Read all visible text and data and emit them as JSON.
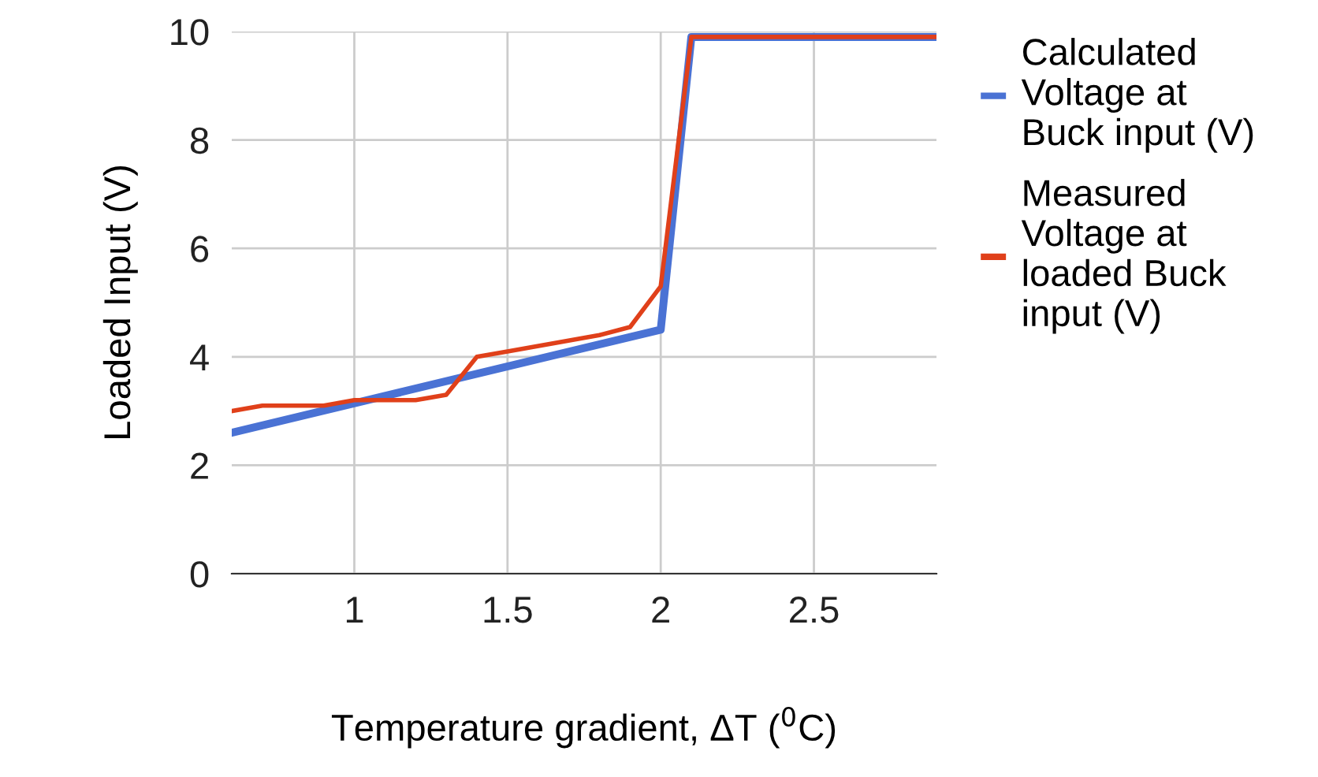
{
  "chart_data": {
    "type": "line",
    "xlabel": "Temperature gradient, ΔT ($^{0}$C)",
    "ylabel": "Loaded Input (V)",
    "series": [
      {
        "name": "Calculated Voltage at Buck input (V)",
        "color": "#4a72d4",
        "x": [
          0.6,
          2.0,
          2.1,
          2.9
        ],
        "values": [
          2.6,
          4.5,
          9.9,
          9.9
        ]
      },
      {
        "name": "Measured Voltage at loaded Buck input (V)",
        "color": "#e0401a",
        "x": [
          0.6,
          0.7,
          0.9,
          1.0,
          1.2,
          1.3,
          1.4,
          1.5,
          1.8,
          1.9,
          2.0,
          2.1,
          2.9
        ],
        "values": [
          3.0,
          3.1,
          3.1,
          3.2,
          3.2,
          3.3,
          4.0,
          4.1,
          4.4,
          4.55,
          5.3,
          9.9,
          9.9
        ]
      }
    ],
    "xlim": [
      0.6,
      2.9
    ],
    "xticks": [
      1,
      1.5,
      2,
      2.5
    ],
    "ylim": [
      0,
      10
    ],
    "yticks": [
      0,
      2,
      4,
      6,
      8,
      10
    ],
    "grid": true,
    "legend": "right",
    "marker": "none",
    "line_style": "solid"
  }
}
